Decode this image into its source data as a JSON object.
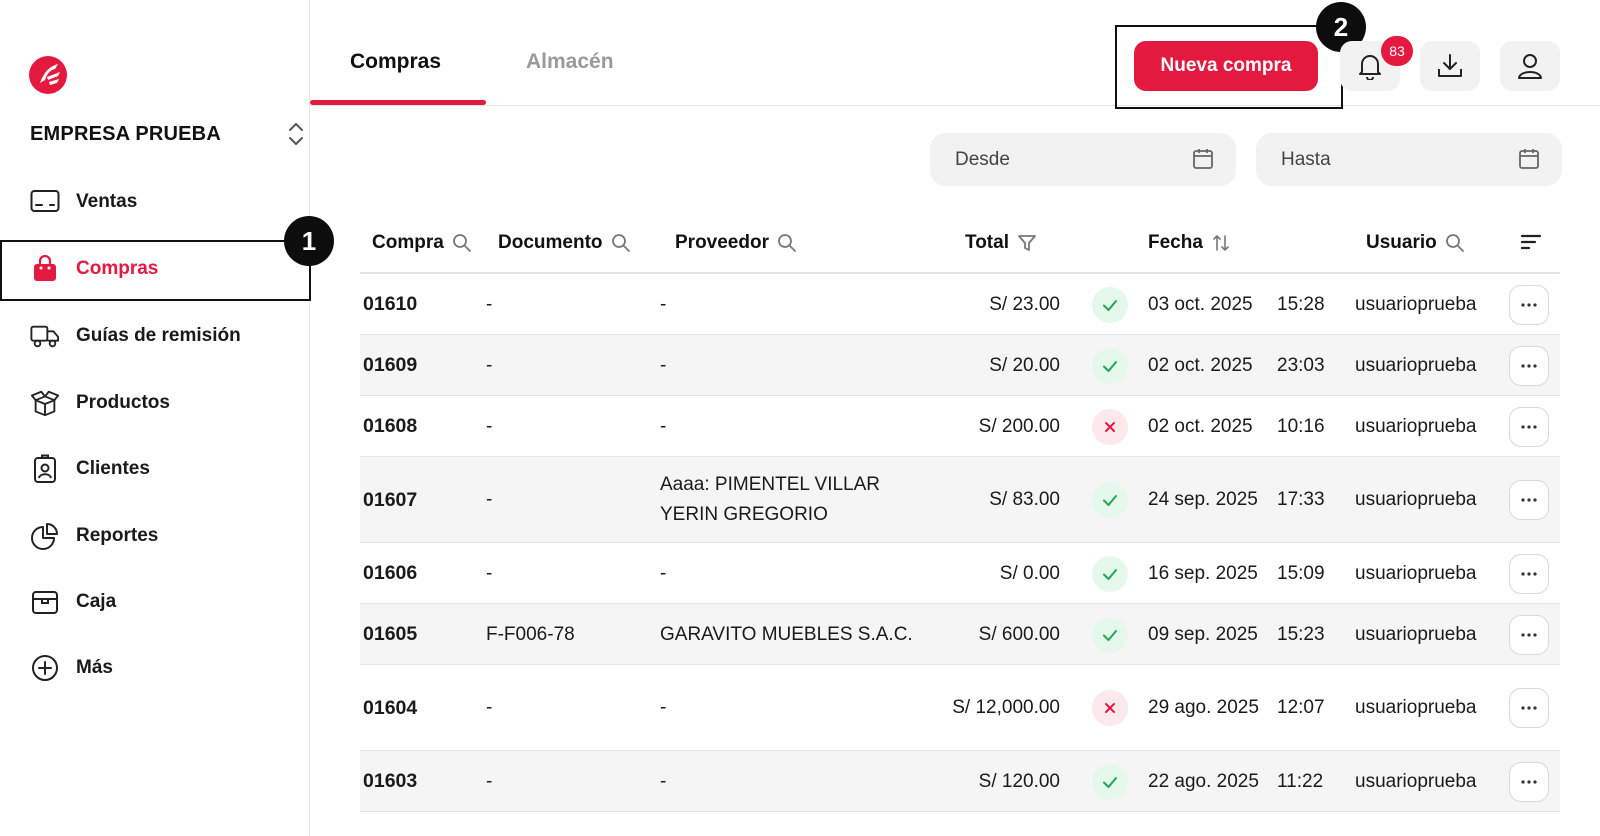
{
  "brand": {
    "accent": "#e3193f",
    "company_name": "EMPRESA PRUEBA"
  },
  "sidebar": {
    "items": [
      {
        "label": "Ventas",
        "icon": "terminal-icon"
      },
      {
        "label": "Compras",
        "icon": "shopping-bag-icon",
        "active": true
      },
      {
        "label": "Guías de remisión",
        "icon": "truck-icon"
      },
      {
        "label": "Productos",
        "icon": "open-box-icon"
      },
      {
        "label": "Clientes",
        "icon": "id-badge-icon"
      },
      {
        "label": "Reportes",
        "icon": "pie-chart-icon"
      },
      {
        "label": "Caja",
        "icon": "cash-box-icon"
      },
      {
        "label": "Más",
        "icon": "plus-circle-icon"
      }
    ]
  },
  "steps": {
    "one": "1",
    "two": "2"
  },
  "header": {
    "tabs": [
      {
        "label": "Compras",
        "active": true
      },
      {
        "label": "Almacén",
        "active": false
      }
    ],
    "new_button": "Nueva compra",
    "notifications_count": "83"
  },
  "filters": {
    "from_placeholder": "Desde",
    "to_placeholder": "Hasta"
  },
  "table": {
    "columns": [
      "Compra",
      "Documento",
      "Proveedor",
      "Total",
      "Fecha",
      "Usuario"
    ],
    "rows": [
      {
        "compra": "01610",
        "documento": "-",
        "proveedor": "-",
        "total": "S/ 23.00",
        "status": "ok",
        "fecha": "03 oct. 2025",
        "hora": "15:28",
        "usuario": "usuarioprueba"
      },
      {
        "compra": "01609",
        "documento": "-",
        "proveedor": "-",
        "total": "S/ 20.00",
        "status": "ok",
        "fecha": "02 oct. 2025",
        "hora": "23:03",
        "usuario": "usuarioprueba"
      },
      {
        "compra": "01608",
        "documento": "-",
        "proveedor": "-",
        "total": "S/ 200.00",
        "status": "error",
        "fecha": "02 oct. 2025",
        "hora": "10:16",
        "usuario": "usuarioprueba"
      },
      {
        "compra": "01607",
        "documento": "-",
        "proveedor": "Aaaa: PIMENTEL VILLAR YERIN GREGORIO",
        "total": "S/ 83.00",
        "status": "ok",
        "fecha": "24 sep. 2025",
        "hora": "17:33",
        "usuario": "usuarioprueba"
      },
      {
        "compra": "01606",
        "documento": "-",
        "proveedor": "-",
        "total": "S/ 0.00",
        "status": "ok",
        "fecha": "16 sep. 2025",
        "hora": "15:09",
        "usuario": "usuarioprueba"
      },
      {
        "compra": "01605",
        "documento": "F-F006-78",
        "proveedor": "GARAVITO MUEBLES S.A.C.",
        "total": "S/ 600.00",
        "status": "ok",
        "fecha": "09 sep. 2025",
        "hora": "15:23",
        "usuario": "usuarioprueba"
      },
      {
        "compra": "01604",
        "documento": "-",
        "proveedor": "-",
        "total": "S/ 12,000.00",
        "status": "error",
        "fecha": "29 ago. 2025",
        "hora": "12:07",
        "usuario": "usuarioprueba"
      },
      {
        "compra": "01603",
        "documento": "-",
        "proveedor": "-",
        "total": "S/ 120.00",
        "status": "ok",
        "fecha": "22 ago. 2025",
        "hora": "11:22",
        "usuario": "usuarioprueba"
      }
    ]
  }
}
